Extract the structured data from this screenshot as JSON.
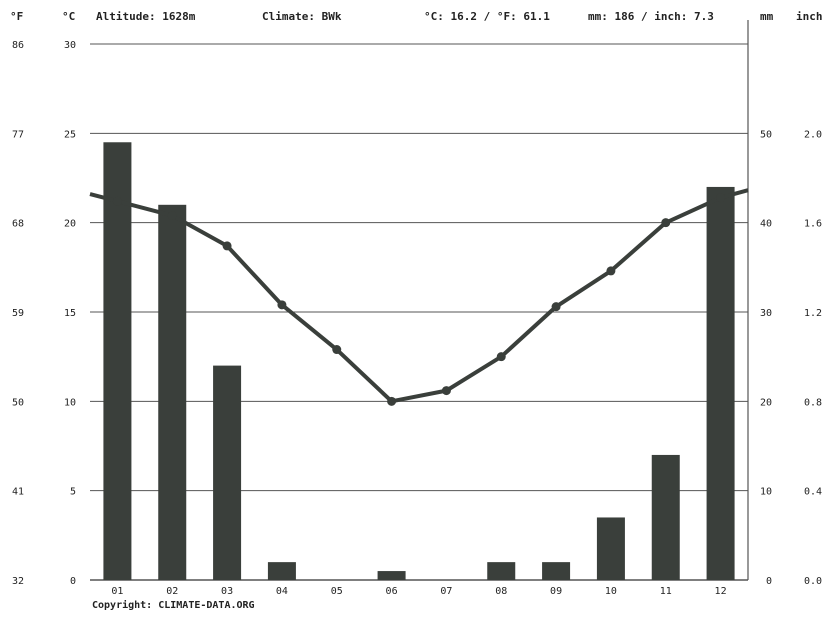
{
  "header": {
    "unit_f": "°F",
    "unit_c": "°C",
    "altitude": "Altitude: 1628m",
    "climate": "Climate: BWk",
    "annual_temp": "°C: 16.2 / °F: 61.1",
    "annual_precip": "mm: 186 / inch: 7.3",
    "unit_mm": "mm",
    "unit_inch": "inch"
  },
  "footer": {
    "copyright": "Copyright: CLIMATE-DATA.ORG"
  },
  "colors": {
    "bar": "#3a3f3b",
    "line": "#3a3f3b",
    "grid": "#555555"
  },
  "chart_data": {
    "type": "bar",
    "categories": [
      "01",
      "02",
      "03",
      "04",
      "05",
      "06",
      "07",
      "08",
      "09",
      "10",
      "11",
      "12"
    ],
    "series": [
      {
        "kind": "bar",
        "axis": "precipitation_mm",
        "values": [
          49,
          42,
          24,
          2,
          0,
          1,
          0,
          2,
          2,
          7,
          14,
          44
        ]
      },
      {
        "kind": "line",
        "axis": "temperature_c",
        "values": [
          21.2,
          20.4,
          18.7,
          15.4,
          12.9,
          10.0,
          10.6,
          12.5,
          15.3,
          17.3,
          20.0,
          21.4
        ]
      }
    ],
    "y_left_f_ticks": [
      "32",
      "41",
      "50",
      "59",
      "68",
      "77",
      "86"
    ],
    "y_left_c_ticks": [
      "0",
      "5",
      "10",
      "15",
      "20",
      "25",
      "30"
    ],
    "y_right_mm_ticks": [
      "0",
      "10",
      "20",
      "30",
      "40",
      "50"
    ],
    "y_right_inch_ticks": [
      "0.0",
      "0.4",
      "0.8",
      "1.2",
      "1.6",
      "2.0"
    ],
    "ylim_c": [
      0,
      30
    ],
    "ylim_mm": [
      0,
      60
    ],
    "grid": true
  }
}
